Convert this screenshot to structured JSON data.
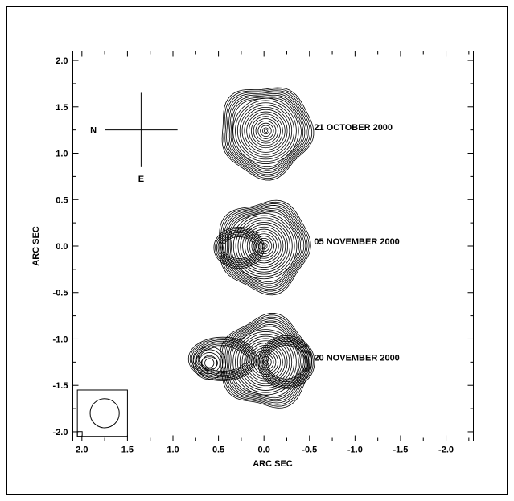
{
  "chart_data": {
    "type": "contour",
    "title": "",
    "xlabel": "ARC SEC",
    "ylabel": "ARC SEC",
    "xlim": [
      2.1,
      -2.3
    ],
    "ylim": [
      -2.1,
      2.1
    ],
    "x_ticks": [
      2.0,
      1.5,
      1.0,
      0.5,
      0.0,
      -0.5,
      -1.0,
      -1.5,
      -2.0
    ],
    "x_tick_labels": [
      "2.0",
      "1.5",
      "1.0",
      "0.5",
      "0.0",
      "-0.5",
      "-1.0",
      "-1.5",
      "-2.0"
    ],
    "y_ticks": [
      2.0,
      1.5,
      1.0,
      0.5,
      0.0,
      -0.5,
      -1.0,
      -1.5,
      -2.0
    ],
    "y_tick_labels": [
      "2.0",
      "1.5",
      "1.0",
      "0.5",
      "0.0",
      "-0.5",
      "-1.0",
      "-1.5",
      "-2.0"
    ],
    "compass": {
      "north": "N",
      "east": "E",
      "center": [
        1.35,
        1.25
      ],
      "arm": 0.4
    },
    "beam": {
      "center": [
        1.75,
        -1.8
      ],
      "radius": 0.16,
      "box": [
        2.05,
        -1.55,
        1.5,
        -2.05
      ]
    },
    "epochs": [
      {
        "label": "21 OCTOBER  2000",
        "center": [
          -0.02,
          1.24
        ],
        "radius": 0.5,
        "label_pos": [
          -0.55,
          1.28
        ],
        "secondary": null
      },
      {
        "label": "05 NOVEMBER 2000",
        "center": [
          0.0,
          0.0
        ],
        "radius": 0.5,
        "label_pos": [
          -0.55,
          0.05
        ],
        "secondary": null
      },
      {
        "label": "20 NOVEMBER 2000",
        "center": [
          -0.02,
          -1.25
        ],
        "radius": 0.5,
        "label_pos": [
          -0.55,
          -1.2
        ],
        "secondary": {
          "center": [
            0.6,
            -1.26
          ],
          "radius": 0.18
        }
      }
    ]
  }
}
